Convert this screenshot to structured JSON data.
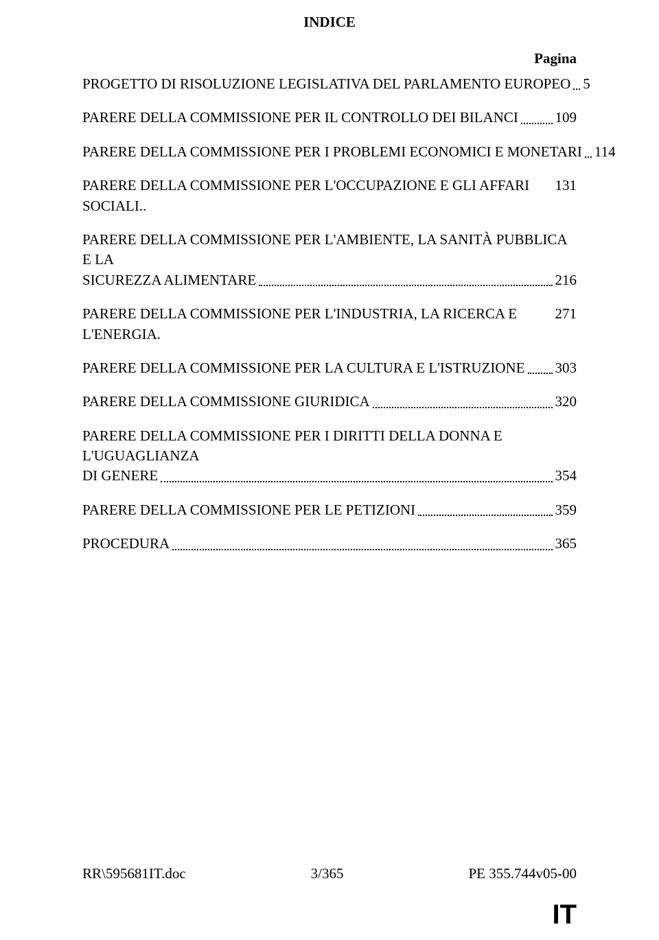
{
  "heading": "INDICE",
  "page_label": "Pagina",
  "toc": [
    {
      "text": "PROGETTO DI RISOLUZIONE LEGISLATIVA DEL PARLAMENTO EUROPEO",
      "page": "5",
      "dots": true
    },
    {
      "text": "PARERE DELLA COMMISSIONE PER IL CONTROLLO DEI BILANCI",
      "page": "109",
      "dots": true
    },
    {
      "text": "PARERE DELLA COMMISSIONE PER I PROBLEMI ECONOMICI E MONETARI",
      "page": "114",
      "dots": true
    },
    {
      "text": "PARERE DELLA COMMISSIONE PER L'OCCUPAZIONE E GLI AFFARI SOCIALI",
      "page": "131",
      "dots": false,
      "twolinedots": true,
      "suffix": ".."
    },
    {
      "text_l1": "PARERE DELLA COMMISSIONE PER L'AMBIENTE, LA SANITÀ PUBBLICA E LA",
      "text_l2": "SICUREZZA ALIMENTARE",
      "page": "216",
      "multiline": true
    },
    {
      "text": "PARERE DELLA COMMISSIONE PER L'INDUSTRIA, LA RICERCA E L'ENERGIA.",
      "page": "271",
      "dots": false
    },
    {
      "text": "PARERE DELLA COMMISSIONE PER LA CULTURA E L'ISTRUZIONE",
      "page": "303",
      "dots": true
    },
    {
      "text": "PARERE DELLA COMMISSIONE GIURIDICA",
      "page": "320",
      "dots": true
    },
    {
      "text_l1": "PARERE DELLA COMMISSIONE PER I DIRITTI DELLA DONNA E L'UGUAGLIANZA",
      "text_l2": "DI GENERE",
      "page": "354",
      "multiline": true
    },
    {
      "text": "PARERE DELLA COMMISSIONE PER LE PETIZIONI",
      "page": "359",
      "dots": true
    },
    {
      "text": "PROCEDURA",
      "page": "365",
      "dots": true
    }
  ],
  "footer": {
    "left": "RR\\595681IT.doc",
    "center": "3/365",
    "right": "PE 355.744v05-00"
  },
  "lang": "IT",
  "colors": {
    "text": "#000000",
    "bg": "#ffffff"
  }
}
